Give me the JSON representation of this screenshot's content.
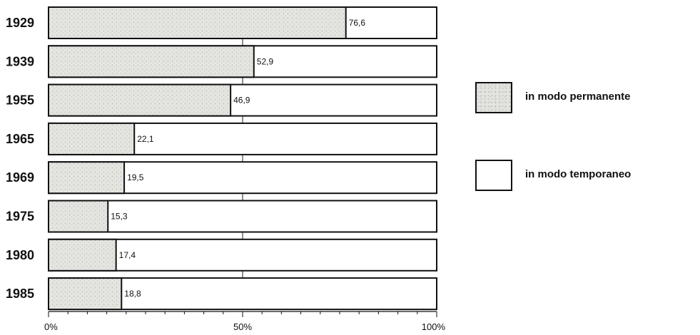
{
  "chart_data": {
    "type": "bar",
    "orientation": "horizontal",
    "stacked": true,
    "categories": [
      "1929",
      "1939",
      "1955",
      "1965",
      "1969",
      "1975",
      "1980",
      "1985"
    ],
    "series": [
      {
        "name": "in modo permanente",
        "values": [
          76.6,
          52.9,
          46.9,
          22.1,
          19.5,
          15.3,
          17.4,
          18.8
        ],
        "color": "#e4e4e0"
      },
      {
        "name": "in modo temporaneo",
        "values": [
          23.4,
          47.1,
          53.1,
          77.9,
          80.5,
          84.7,
          82.6,
          81.2
        ],
        "color": "#ffffff"
      }
    ],
    "value_labels": [
      "76,6",
      "52,9",
      "46,9",
      "22,1",
      "19,5",
      "15,3",
      "17,4",
      "18,8"
    ],
    "xlim": [
      0,
      100
    ],
    "x_ticks": [
      "0%",
      "50%",
      "100%"
    ],
    "legend_position": "right",
    "grid": false
  },
  "legend": [
    {
      "label": "in modo permanente",
      "swatch": "stippled"
    },
    {
      "label": "in modo temporaneo",
      "swatch": "white"
    }
  ]
}
